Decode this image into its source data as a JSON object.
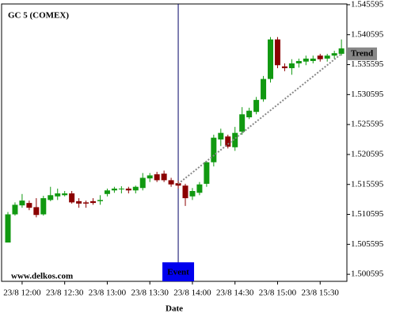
{
  "chart_data": {
    "type": "candlestick",
    "title": "GC 5 (COMEX)",
    "watermark": "www.delkos.com",
    "x_label": "Date",
    "categories": [
      null,
      null,
      "23/8 12:00",
      null,
      null,
      null,
      null,
      null,
      "23/8 12:30",
      null,
      null,
      null,
      null,
      null,
      "23/8 13:00",
      null,
      null,
      null,
      null,
      null,
      "23/8 13:30",
      null,
      null,
      null,
      null,
      null,
      "23/8 14:00",
      null,
      null,
      null,
      null,
      null,
      "23/8 14:30",
      null,
      null,
      null,
      null,
      null,
      "23/8 15:00",
      null,
      null,
      null,
      null,
      null,
      "23/8 15:30",
      null,
      null,
      null
    ],
    "open": [
      1.5059,
      1.5106,
      1.5121,
      1.5125,
      1.5118,
      1.5106,
      1.513,
      1.5136,
      1.5138,
      1.5141,
      1.5128,
      1.5126,
      1.5128,
      1.5128,
      1.514,
      1.5146,
      1.5148,
      1.5149,
      1.5146,
      1.515,
      1.5166,
      1.5173,
      1.5174,
      1.5163,
      1.5158,
      1.5154,
      1.5136,
      1.5142,
      1.5157,
      1.5193,
      1.5231,
      1.5236,
      1.5218,
      1.5244,
      1.5268,
      1.5277,
      1.5298,
      1.5332,
      1.5398,
      1.5353,
      1.535,
      1.5358,
      1.5361,
      1.5362,
      1.5371,
      1.5366,
      1.5371,
      1.5374
    ],
    "high": [
      1.511,
      1.5126,
      1.514,
      1.5129,
      1.5133,
      1.5137,
      1.5152,
      1.5149,
      1.5145,
      1.5145,
      1.5133,
      1.5129,
      1.5133,
      1.5138,
      1.5149,
      1.5152,
      1.5153,
      1.5152,
      1.5154,
      1.5175,
      1.5175,
      1.5177,
      1.5179,
      1.5167,
      1.5162,
      1.5157,
      1.515,
      1.516,
      1.5195,
      1.5239,
      1.5249,
      1.5239,
      1.5252,
      1.5285,
      1.5284,
      1.5302,
      1.5337,
      1.5402,
      1.5402,
      1.5358,
      1.5365,
      1.5366,
      1.5371,
      1.5371,
      1.5374,
      1.5374,
      1.5379,
      1.5398
    ],
    "low": [
      1.5059,
      1.5104,
      1.5117,
      1.5113,
      1.5101,
      1.5104,
      1.5128,
      1.513,
      1.5136,
      1.5124,
      1.5117,
      1.5117,
      1.5122,
      1.5122,
      1.5136,
      1.5142,
      1.5141,
      1.5141,
      1.5141,
      1.5146,
      1.516,
      1.516,
      1.516,
      1.5152,
      1.5149,
      1.512,
      1.513,
      1.5138,
      1.5152,
      1.5186,
      1.522,
      1.5216,
      1.5212,
      1.5239,
      1.5265,
      1.5273,
      1.5294,
      1.5326,
      1.535,
      1.5345,
      1.5339,
      1.5351,
      1.5355,
      1.5358,
      1.5361,
      1.5361,
      1.5366,
      1.5371
    ],
    "close": [
      1.5106,
      1.5122,
      1.5129,
      1.5117,
      1.5105,
      1.5133,
      1.5138,
      1.5141,
      1.5141,
      1.5126,
      1.5124,
      1.5124,
      1.5125,
      1.513,
      1.5146,
      1.5149,
      1.5149,
      1.5146,
      1.5152,
      1.5167,
      1.5171,
      1.5163,
      1.5163,
      1.5156,
      1.5154,
      1.5133,
      1.5145,
      1.5156,
      1.5193,
      1.5234,
      1.5242,
      1.5219,
      1.5242,
      1.5273,
      1.5279,
      1.5297,
      1.5332,
      1.5398,
      1.5355,
      1.535,
      1.5358,
      1.5362,
      1.5366,
      1.5366,
      1.5365,
      1.5371,
      1.5375,
      1.5383
    ],
    "up_color": "#119911",
    "down_color": "#8b0000",
    "trend": {
      "label": "Trend",
      "color": "#888888",
      "values": [
        null,
        null,
        null,
        null,
        null,
        null,
        null,
        null,
        null,
        null,
        null,
        null,
        null,
        null,
        null,
        null,
        null,
        null,
        null,
        null,
        null,
        null,
        null,
        null,
        1.5157,
        null,
        null,
        null,
        null,
        null,
        null,
        null,
        null,
        null,
        null,
        null,
        null,
        null,
        null,
        null,
        null,
        null,
        null,
        null,
        null,
        null,
        null,
        1.5374
      ]
    },
    "event": {
      "label": "Event",
      "color": "#0000ee"
    },
    "ylim": [
      1.49942,
      1.54572
    ],
    "yticks": [
      1.500595,
      1.505595,
      1.510595,
      1.515595,
      1.520595,
      1.525595,
      1.530595,
      1.535595,
      1.540595,
      1.545595
    ]
  }
}
